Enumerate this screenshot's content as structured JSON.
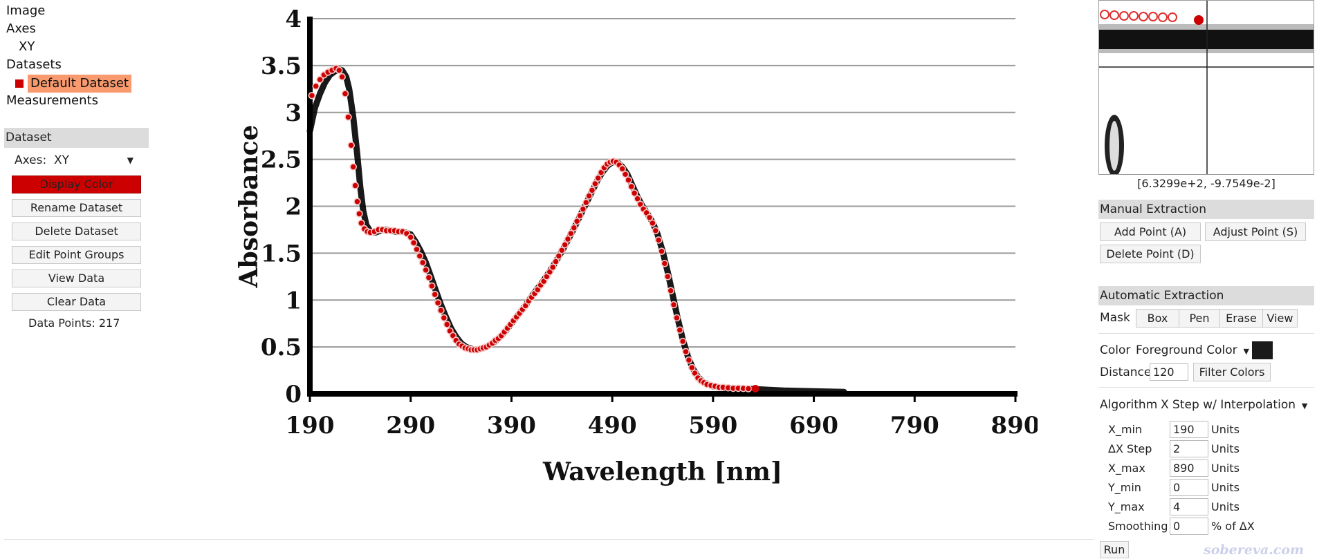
{
  "tree": {
    "image": "Image",
    "axes": "Axes",
    "xy": "XY",
    "datasets": "Datasets",
    "default_dataset": "Default Dataset",
    "measurements": "Measurements"
  },
  "dataset_panel": {
    "header": "Dataset",
    "axes_label": "Axes:",
    "axes_value": "XY",
    "buttons": {
      "display_color": "Display Color",
      "rename": "Rename Dataset",
      "delete": "Delete Dataset",
      "edit_groups": "Edit Point Groups",
      "view_data": "View Data",
      "clear_data": "Clear Data"
    },
    "data_points": "Data Points: 217",
    "dataset_color": "#cc0000"
  },
  "chart_data": {
    "type": "line",
    "title": "",
    "xlabel": "Wavelength [nm]",
    "ylabel": "Absorbance",
    "xlim": [
      190,
      890
    ],
    "ylim": [
      0,
      4
    ],
    "xticks": [
      "190",
      "290",
      "390",
      "490",
      "590",
      "690",
      "790",
      "890"
    ],
    "yticks": [
      "0",
      "0.5",
      "1",
      "1.5",
      "2",
      "2.5",
      "3",
      "3.5",
      "4"
    ],
    "grid": "horizontal",
    "series": [
      {
        "color": "#000000",
        "points": [
          [
            190,
            2.8
          ],
          [
            195,
            3.05
          ],
          [
            200,
            3.2
          ],
          [
            205,
            3.32
          ],
          [
            210,
            3.4
          ],
          [
            215,
            3.44
          ],
          [
            218,
            3.46
          ],
          [
            222,
            3.45
          ],
          [
            226,
            3.38
          ],
          [
            229,
            3.25
          ],
          [
            233,
            2.95
          ],
          [
            237,
            2.55
          ],
          [
            240,
            2.2
          ],
          [
            243,
            1.95
          ],
          [
            246,
            1.8
          ],
          [
            250,
            1.73
          ],
          [
            255,
            1.72
          ],
          [
            260,
            1.74
          ],
          [
            265,
            1.75
          ],
          [
            270,
            1.74
          ],
          [
            275,
            1.73
          ],
          [
            280,
            1.73
          ],
          [
            285,
            1.72
          ],
          [
            290,
            1.7
          ],
          [
            295,
            1.62
          ],
          [
            300,
            1.52
          ],
          [
            305,
            1.4
          ],
          [
            310,
            1.25
          ],
          [
            315,
            1.1
          ],
          [
            320,
            0.95
          ],
          [
            325,
            0.82
          ],
          [
            330,
            0.7
          ],
          [
            335,
            0.61
          ],
          [
            340,
            0.54
          ],
          [
            345,
            0.5
          ],
          [
            350,
            0.48
          ],
          [
            355,
            0.47
          ],
          [
            360,
            0.48
          ],
          [
            365,
            0.5
          ],
          [
            370,
            0.53
          ],
          [
            375,
            0.57
          ],
          [
            380,
            0.62
          ],
          [
            385,
            0.68
          ],
          [
            390,
            0.75
          ],
          [
            395,
            0.82
          ],
          [
            400,
            0.89
          ],
          [
            405,
            0.96
          ],
          [
            410,
            1.04
          ],
          [
            415,
            1.11
          ],
          [
            420,
            1.18
          ],
          [
            425,
            1.26
          ],
          [
            430,
            1.34
          ],
          [
            435,
            1.43
          ],
          [
            440,
            1.52
          ],
          [
            445,
            1.62
          ],
          [
            450,
            1.72
          ],
          [
            455,
            1.83
          ],
          [
            460,
            1.94
          ],
          [
            465,
            2.05
          ],
          [
            470,
            2.16
          ],
          [
            475,
            2.27
          ],
          [
            480,
            2.36
          ],
          [
            485,
            2.43
          ],
          [
            490,
            2.47
          ],
          [
            495,
            2.47
          ],
          [
            500,
            2.42
          ],
          [
            505,
            2.34
          ],
          [
            510,
            2.22
          ],
          [
            515,
            2.1
          ],
          [
            520,
            2.0
          ],
          [
            525,
            1.92
          ],
          [
            530,
            1.83
          ],
          [
            535,
            1.7
          ],
          [
            540,
            1.52
          ],
          [
            545,
            1.3
          ],
          [
            550,
            1.05
          ],
          [
            555,
            0.8
          ],
          [
            560,
            0.58
          ],
          [
            565,
            0.4
          ],
          [
            570,
            0.27
          ],
          [
            575,
            0.18
          ],
          [
            580,
            0.13
          ],
          [
            585,
            0.1
          ],
          [
            590,
            0.08
          ],
          [
            600,
            0.065
          ],
          [
            610,
            0.06
          ],
          [
            620,
            0.055
          ],
          [
            632,
            0.05
          ],
          [
            660,
            0.035
          ],
          [
            700,
            0.025
          ],
          [
            720,
            0.02
          ]
        ]
      },
      {
        "color": "#cc0000",
        "points": [
          [
            192,
            3.18
          ],
          [
            196,
            3.28
          ],
          [
            200,
            3.35
          ],
          [
            204,
            3.4
          ],
          [
            208,
            3.43
          ],
          [
            212,
            3.45
          ],
          [
            216,
            3.47
          ],
          [
            219,
            3.45
          ],
          [
            222,
            3.38
          ],
          [
            225,
            3.2
          ],
          [
            228,
            2.95
          ],
          [
            231,
            2.65
          ],
          [
            233,
            2.42
          ],
          [
            235,
            2.22
          ],
          [
            237,
            2.05
          ],
          [
            239,
            1.92
          ],
          [
            241,
            1.82
          ],
          [
            244,
            1.76
          ],
          [
            247,
            1.73
          ],
          [
            250,
            1.72
          ],
          [
            254,
            1.73
          ],
          [
            258,
            1.75
          ],
          [
            262,
            1.75
          ],
          [
            266,
            1.74
          ],
          [
            270,
            1.74
          ],
          [
            274,
            1.74
          ],
          [
            278,
            1.73
          ],
          [
            282,
            1.73
          ],
          [
            286,
            1.71
          ],
          [
            290,
            1.67
          ],
          [
            293,
            1.61
          ],
          [
            296,
            1.54
          ],
          [
            299,
            1.47
          ],
          [
            302,
            1.4
          ],
          [
            305,
            1.32
          ],
          [
            308,
            1.24
          ],
          [
            311,
            1.15
          ],
          [
            314,
            1.06
          ],
          [
            317,
            0.97
          ],
          [
            320,
            0.89
          ],
          [
            323,
            0.81
          ],
          [
            326,
            0.74
          ],
          [
            329,
            0.67
          ],
          [
            332,
            0.62
          ],
          [
            335,
            0.57
          ],
          [
            338,
            0.53
          ],
          [
            341,
            0.51
          ],
          [
            344,
            0.49
          ],
          [
            347,
            0.48
          ],
          [
            350,
            0.47
          ],
          [
            353,
            0.47
          ],
          [
            356,
            0.47
          ],
          [
            359,
            0.48
          ],
          [
            362,
            0.49
          ],
          [
            365,
            0.5
          ],
          [
            368,
            0.52
          ],
          [
            371,
            0.54
          ],
          [
            374,
            0.57
          ],
          [
            377,
            0.59
          ],
          [
            380,
            0.62
          ],
          [
            383,
            0.66
          ],
          [
            386,
            0.7
          ],
          [
            389,
            0.74
          ],
          [
            392,
            0.78
          ],
          [
            395,
            0.82
          ],
          [
            398,
            0.86
          ],
          [
            401,
            0.9
          ],
          [
            404,
            0.94
          ],
          [
            407,
            0.99
          ],
          [
            410,
            1.03
          ],
          [
            413,
            1.07
          ],
          [
            416,
            1.11
          ],
          [
            419,
            1.16
          ],
          [
            422,
            1.2
          ],
          [
            425,
            1.25
          ],
          [
            428,
            1.3
          ],
          [
            431,
            1.35
          ],
          [
            434,
            1.41
          ],
          [
            437,
            1.47
          ],
          [
            440,
            1.53
          ],
          [
            443,
            1.59
          ],
          [
            446,
            1.65
          ],
          [
            449,
            1.71
          ],
          [
            452,
            1.77
          ],
          [
            455,
            1.84
          ],
          [
            458,
            1.9
          ],
          [
            461,
            1.97
          ],
          [
            464,
            2.04
          ],
          [
            467,
            2.11
          ],
          [
            470,
            2.17
          ],
          [
            473,
            2.24
          ],
          [
            476,
            2.3
          ],
          [
            479,
            2.36
          ],
          [
            482,
            2.41
          ],
          [
            485,
            2.45
          ],
          [
            488,
            2.47
          ],
          [
            491,
            2.48
          ],
          [
            494,
            2.47
          ],
          [
            497,
            2.44
          ],
          [
            500,
            2.4
          ],
          [
            503,
            2.34
          ],
          [
            506,
            2.28
          ],
          [
            509,
            2.21
          ],
          [
            512,
            2.14
          ],
          [
            515,
            2.08
          ],
          [
            518,
            2.02
          ],
          [
            521,
            1.97
          ],
          [
            524,
            1.93
          ],
          [
            527,
            1.88
          ],
          [
            530,
            1.82
          ],
          [
            533,
            1.74
          ],
          [
            536,
            1.64
          ],
          [
            539,
            1.52
          ],
          [
            542,
            1.39
          ],
          [
            545,
            1.25
          ],
          [
            548,
            1.1
          ],
          [
            551,
            0.95
          ],
          [
            554,
            0.81
          ],
          [
            557,
            0.68
          ],
          [
            560,
            0.56
          ],
          [
            563,
            0.45
          ],
          [
            566,
            0.36
          ],
          [
            569,
            0.28
          ],
          [
            572,
            0.22
          ],
          [
            575,
            0.17
          ],
          [
            578,
            0.14
          ],
          [
            581,
            0.12
          ],
          [
            584,
            0.1
          ],
          [
            588,
            0.09
          ],
          [
            592,
            0.08
          ],
          [
            596,
            0.07
          ],
          [
            600,
            0.07
          ],
          [
            605,
            0.065
          ],
          [
            610,
            0.06
          ],
          [
            615,
            0.06
          ],
          [
            620,
            0.058
          ],
          [
            625,
            0.055
          ],
          [
            632,
            0.055
          ]
        ]
      }
    ]
  },
  "zoom": {
    "coords": "[6.3299e+2, -9.7549e-2]"
  },
  "manual": {
    "header": "Manual Extraction",
    "add": "Add Point (A)",
    "adjust": "Adjust Point (S)",
    "delete": "Delete Point (D)"
  },
  "automatic": {
    "header": "Automatic Extraction",
    "mask_label": "Mask",
    "mask_buttons": [
      "Box",
      "Pen",
      "Erase",
      "View"
    ],
    "color_label": "Color",
    "color_value": "Foreground Color",
    "color_swatch": "#1a1a1a",
    "distance_label": "Distance",
    "distance_value": "120",
    "filter_button": "Filter Colors",
    "algorithm_label": "Algorithm",
    "algorithm_value": "X Step w/ Interpolation",
    "params": [
      {
        "label": "X_min",
        "value": "190",
        "unit": "Units"
      },
      {
        "label": "ΔX Step",
        "value": "2",
        "unit": "Units"
      },
      {
        "label": "X_max",
        "value": "890",
        "unit": "Units"
      },
      {
        "label": "Y_min",
        "value": "0",
        "unit": "Units"
      },
      {
        "label": "Y_max",
        "value": "4",
        "unit": "Units"
      },
      {
        "label": "Smoothing",
        "value": "0",
        "unit": "% of ΔX"
      }
    ],
    "run": "Run"
  },
  "watermark": "sobereva.com"
}
